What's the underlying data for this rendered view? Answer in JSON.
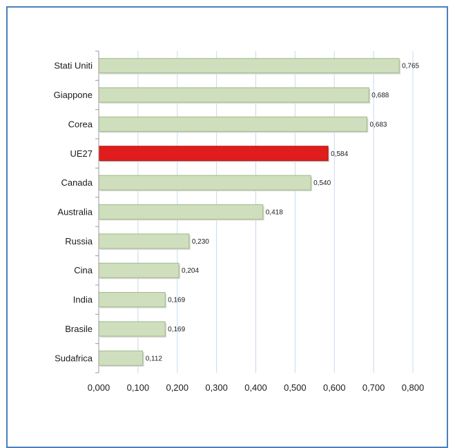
{
  "chart_data": {
    "type": "bar",
    "orientation": "horizontal",
    "categories": [
      "Stati Uniti",
      "Giappone",
      "Corea",
      "UE27",
      "Canada",
      "Australia",
      "Russia",
      "Cina",
      "India",
      "Brasile",
      "Sudafrica"
    ],
    "values": [
      0.765,
      0.688,
      0.683,
      0.584,
      0.54,
      0.418,
      0.23,
      0.204,
      0.169,
      0.169,
      0.112
    ],
    "value_labels": [
      "0,765",
      "0,688",
      "0,683",
      "0,584",
      "0,540",
      "0,418",
      "0,230",
      "0,204",
      "0,169",
      "0,169",
      "0,112"
    ],
    "highlight_category": "UE27",
    "xlim": [
      0,
      0.8
    ],
    "x_ticks": [
      "0,000",
      "0,100",
      "0,200",
      "0,300",
      "0,400",
      "0,500",
      "0,600",
      "0,700",
      "0,800"
    ],
    "grid": "vertical",
    "legend": "none",
    "colors": {
      "bar_fill": "#cfdfbd",
      "bar_edge": "#9fb888",
      "highlight_fill": "#e01c1c",
      "highlight_edge": "#a81010",
      "grid": "#c8d8ea",
      "frame": "#4a7fb8"
    }
  }
}
